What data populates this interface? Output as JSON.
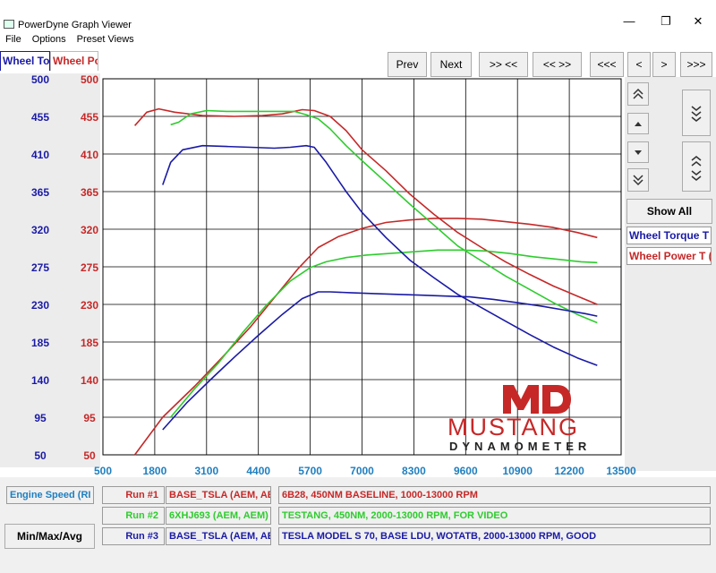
{
  "window": {
    "title": "PowerDyne Graph Viewer",
    "minimize_label": "—",
    "restore_label": "❐",
    "close_label": "✕"
  },
  "menu": {
    "file": "File",
    "options": "Options",
    "preset_views": "Preset Views"
  },
  "tabs": {
    "torque": "Wheel To",
    "power": "Wheel Po"
  },
  "toolbar": {
    "prev": "Prev",
    "next": "Next",
    "jump_right": ">> <<",
    "jump_left": "<< >>",
    "first": "<<<",
    "step_left": "<",
    "step_right": ">",
    "last": ">>>"
  },
  "right_panel": {
    "show_all": "Show All",
    "legend_torque": "Wheel Torque T",
    "legend_power": "Wheel Power T (",
    "icons": [
      "double-up-icon",
      "up-icon",
      "down-icon",
      "double-down-icon"
    ]
  },
  "colors": {
    "torque_axis": "#1a1aa6",
    "power_axis": "#c62828",
    "run1": "#c62828",
    "run2": "#2ecc2e",
    "run3": "#1a1aa6",
    "x_axis": "#1f7fbf"
  },
  "chart_data": {
    "type": "line",
    "title": "",
    "xlabel": "Engine Speed (RI",
    "xlim": [
      500,
      13500
    ],
    "x_ticks": [
      "500",
      "1800",
      "3100",
      "4400",
      "5700",
      "7000",
      "8300",
      "9600",
      "10900",
      "12200",
      "13500"
    ],
    "left_axis": {
      "label": "Wheel To",
      "ticks": [
        "500",
        "455",
        "410",
        "365",
        "320",
        "275",
        "230",
        "185",
        "140",
        "95",
        "50"
      ],
      "ylim": [
        50,
        500
      ]
    },
    "right_axis": {
      "label": "Wheel Po",
      "ticks": [
        "500",
        "455",
        "410",
        "365",
        "320",
        "275",
        "230",
        "185",
        "140",
        "95",
        "50"
      ],
      "ylim": [
        50,
        500
      ]
    },
    "grid": true,
    "series": [
      {
        "name": "Run #1 Wheel Torque",
        "color": "#c62828",
        "x": [
          1300,
          1600,
          1900,
          2300,
          3000,
          3800,
          4500,
          5000,
          5500,
          5800,
          6200,
          6600,
          7000,
          7600,
          8200,
          8800,
          9400,
          10000,
          10600,
          11200,
          11800,
          12400,
          12900
        ],
        "y": [
          444,
          460,
          464,
          460,
          456,
          455,
          456,
          458,
          463,
          462,
          455,
          438,
          415,
          390,
          362,
          338,
          316,
          298,
          281,
          266,
          252,
          240,
          230
        ]
      },
      {
        "name": "Run #1 Wheel Power",
        "color": "#c62828",
        "x": [
          1300,
          2000,
          2800,
          3500,
          4200,
          4800,
          5400,
          5900,
          6400,
          7000,
          7600,
          8200,
          8800,
          9400,
          10000,
          10600,
          11200,
          11800,
          12400,
          12900
        ],
        "y": [
          50,
          95,
          132,
          167,
          203,
          238,
          273,
          298,
          311,
          321,
          328,
          331,
          333,
          333,
          332,
          329,
          326,
          322,
          316,
          310
        ]
      },
      {
        "name": "Run #2 Wheel Torque",
        "color": "#2ecc2e",
        "x": [
          2200,
          2400,
          2700,
          3100,
          3600,
          4200,
          4800,
          5300,
          5600,
          5900,
          6200,
          6600,
          7000,
          7600,
          8200,
          8800,
          9400,
          10000,
          10600,
          11200,
          11800,
          12400,
          12900
        ],
        "y": [
          445,
          448,
          458,
          462,
          461,
          461,
          461,
          461,
          457,
          452,
          440,
          420,
          402,
          376,
          350,
          325,
          300,
          282,
          264,
          248,
          232,
          218,
          208
        ]
      },
      {
        "name": "Run #2 Wheel Power",
        "color": "#2ecc2e",
        "x": [
          2200,
          2800,
          3400,
          4000,
          4600,
          5200,
          5700,
          6100,
          6600,
          7100,
          7700,
          8300,
          8900,
          9500,
          10100,
          10700,
          11300,
          11900,
          12500,
          12900
        ],
        "y": [
          95,
          129,
          160,
          196,
          229,
          258,
          274,
          281,
          286,
          289,
          291,
          293,
          295,
          295,
          294,
          291,
          287,
          284,
          281,
          280
        ]
      },
      {
        "name": "Run #3 Wheel Torque",
        "color": "#1a1aa6",
        "x": [
          2000,
          2200,
          2500,
          3000,
          3600,
          4200,
          4800,
          5200,
          5600,
          5800,
          6100,
          6600,
          7000,
          7600,
          8200,
          8800,
          9400,
          10000,
          10600,
          11200,
          11800,
          12400,
          12900
        ],
        "y": [
          373,
          400,
          415,
          420,
          419,
          418,
          417,
          418,
          420,
          418,
          400,
          365,
          340,
          310,
          283,
          262,
          242,
          226,
          210,
          194,
          179,
          166,
          157
        ]
      },
      {
        "name": "Run #3 Wheel Power",
        "color": "#1a1aa6",
        "x": [
          2000,
          2600,
          3200,
          3800,
          4400,
          5000,
          5500,
          5900,
          6200,
          6700,
          7300,
          7900,
          8500,
          9100,
          9700,
          10300,
          10900,
          11500,
          12100,
          12600,
          12900
        ],
        "y": [
          80,
          112,
          140,
          167,
          193,
          218,
          237,
          245,
          245,
          244,
          243,
          242,
          241,
          240,
          239,
          236,
          232,
          228,
          223,
          219,
          216
        ]
      }
    ]
  },
  "runs": [
    {
      "label": "Run #1",
      "id": "BASE_TSLA (AEM, AEI",
      "desc": "6B28, 450NM BASELINE, 1000-13000 RPM",
      "color": "#c62828"
    },
    {
      "label": "Run #2",
      "id": "6XHJ693 (AEM, AEM)",
      "desc": "TESTANG, 450NM, 2000-13000 RPM, FOR VIDEO",
      "color": "#2ecc2e"
    },
    {
      "label": "Run #3",
      "id": "BASE_TSLA (AEM, AEI",
      "desc": "TESLA MODEL S 70, BASE LDU, WOTATB, 2000-13000 RPM, GOOD",
      "color": "#1a1aa6"
    }
  ],
  "bottom": {
    "x_field": "Engine Speed (RI",
    "minmax": "Min/Max/Avg"
  },
  "logo": {
    "mark": "MD",
    "line1": "MUSTANG",
    "line2": "DYNAMOMETER"
  }
}
